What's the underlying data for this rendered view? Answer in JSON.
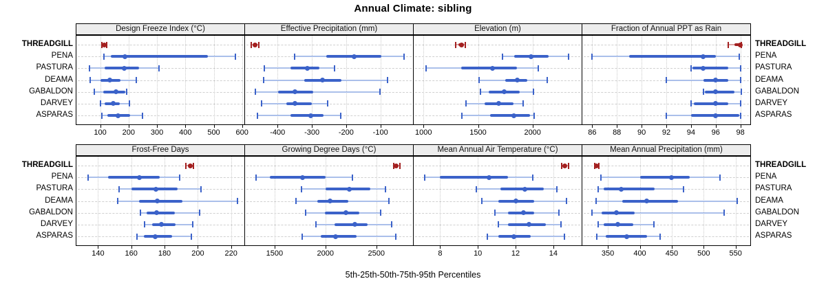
{
  "title": "Annual Climate: sibling",
  "footer": "5th-25th-50th-75th-95th Percentiles",
  "colors": {
    "series": "#3b62c9",
    "series_light": "#aabfea",
    "highlight": "#a32020",
    "highlight_light": "#d9a4a4",
    "grid": "#cfcfcf",
    "strip_bg": "#ededed",
    "panel_border": "#000000"
  },
  "chart_data": {
    "type": "dotplot",
    "subtype": "percentile-interval-plot (lattice-style, 2x4 panels)",
    "percentiles": [
      5,
      25,
      50,
      75,
      95
    ],
    "title": "Annual Climate: sibling",
    "xlabel": "5th-25th-50th-75th-95th Percentiles",
    "legend_position": "none",
    "grid": "horizontal dashed rows, vertical dotted at ticks",
    "categories": [
      "THREADGILL",
      "PENA",
      "PASTURA",
      "DEAMA",
      "GABALDON",
      "DARVEY",
      "ASPARAS"
    ],
    "highlight_category": "THREADGILL",
    "panels": [
      {
        "title": "Design Freeze Index (°C)",
        "grid_row": 0,
        "grid_col": 0,
        "xlim": [
          16,
          608
        ],
        "ticks": [
          100,
          200,
          300,
          400,
          500,
          600
        ],
        "values": [
          [
            105,
            110,
            114,
            119,
            123
          ],
          [
            112,
            137,
            186,
            480,
            577
          ],
          [
            62,
            116,
            184,
            236,
            308
          ],
          [
            64,
            100,
            134,
            172,
            226
          ],
          [
            78,
            110,
            156,
            188,
            192
          ],
          [
            102,
            116,
            146,
            170,
            202
          ],
          [
            106,
            124,
            162,
            204,
            248
          ]
        ]
      },
      {
        "title": "Effective Precipitation (mm)",
        "grid_row": 0,
        "grid_col": 1,
        "xlim": [
          -495,
          -5
        ],
        "ticks": [
          -400,
          -300,
          -200,
          -100
        ],
        "values": [
          [
            -478,
            -471,
            -465,
            -459,
            -454
          ],
          [
            -351,
            -258,
            -177,
            -97,
            -32
          ],
          [
            -439,
            -362,
            -314,
            -278,
            -235
          ],
          [
            -440,
            -323,
            -270,
            -214,
            -80
          ],
          [
            -464,
            -399,
            -350,
            -297,
            -101
          ],
          [
            -446,
            -375,
            -349,
            -300,
            -255
          ],
          [
            -458,
            -362,
            -303,
            -266,
            -216
          ]
        ]
      },
      {
        "title": "Elevation (m)",
        "grid_row": 0,
        "grid_col": 2,
        "xlim": [
          910,
          2450
        ],
        "ticks": [
          1000,
          1500,
          2000
        ],
        "values": [
          [
            1295,
            1320,
            1350,
            1370,
            1386
          ],
          [
            1722,
            1833,
            1986,
            2148,
            2331
          ],
          [
            1024,
            1346,
            1630,
            1854,
            2051
          ],
          [
            1508,
            1752,
            1858,
            1950,
            2132
          ],
          [
            1522,
            1600,
            1742,
            1884,
            2006
          ],
          [
            1390,
            1559,
            1691,
            1823,
            1915
          ],
          [
            1352,
            1610,
            1827,
            1976,
            2016
          ]
        ]
      },
      {
        "title": "Fraction of Annual PPT as Rain",
        "grid_row": 0,
        "grid_col": 3,
        "xlim": [
          85.2,
          98.8
        ],
        "ticks": [
          86,
          88,
          90,
          92,
          94,
          96,
          98
        ],
        "values": [
          [
            97.0,
            97.5,
            98.0,
            98.05,
            98.1
          ],
          [
            86.0,
            89.0,
            95.0,
            96.0,
            97.9
          ],
          [
            94.0,
            94.1,
            95.0,
            97.0,
            98.0
          ],
          [
            92.0,
            95.0,
            96.0,
            97.0,
            98.0
          ],
          [
            95.0,
            95.1,
            96.0,
            97.5,
            98.05
          ],
          [
            94.0,
            94.2,
            96.0,
            97.0,
            98.0
          ],
          [
            92.0,
            94.0,
            96.0,
            97.9,
            98.0
          ]
        ]
      },
      {
        "title": "Frost-Free Days",
        "grid_row": 1,
        "grid_col": 0,
        "xlim": [
          127,
          228
        ],
        "ticks": [
          140,
          160,
          180,
          200,
          220
        ],
        "values": [
          [
            193,
            194,
            195.5,
            196.5,
            197.5
          ],
          [
            134,
            146,
            165,
            177,
            189
          ],
          [
            152.8,
            160,
            174.8,
            188,
            202
          ],
          [
            152,
            164.8,
            175.6,
            190.8,
            224
          ],
          [
            165.5,
            169.4,
            175.4,
            186.2,
            201
          ],
          [
            168,
            172.4,
            177.9,
            186.6,
            196.8
          ],
          [
            163.4,
            167.6,
            174.2,
            184.6,
            195.9
          ]
        ]
      },
      {
        "title": "Growing Degree Days (°C)",
        "grid_row": 1,
        "grid_col": 1,
        "xlim": [
          1210,
          2860
        ],
        "ticks": [
          1500,
          2000,
          2500
        ],
        "values": [
          [
            2669,
            2680,
            2693,
            2710,
            2730
          ],
          [
            1320,
            1452,
            1775,
            2000,
            2262
          ],
          [
            1764,
            2000,
            2231,
            2444,
            2591
          ],
          [
            1709,
            1917,
            2048,
            2224,
            2624
          ],
          [
            1803,
            1993,
            2198,
            2334,
            2543
          ],
          [
            1907,
            2088,
            2290,
            2411,
            2652
          ],
          [
            1768,
            1951,
            2099,
            2308,
            2691
          ]
        ]
      },
      {
        "title": "Mean Annual Air Temperature (°C)",
        "grid_row": 1,
        "grid_col": 2,
        "xlim": [
          6.6,
          15.5
        ],
        "ticks": [
          8,
          10,
          12,
          14
        ],
        "values": [
          [
            14.45,
            14.5,
            14.6,
            14.7,
            14.8
          ],
          [
            7.2,
            8.0,
            10.6,
            11.6,
            12.9
          ],
          [
            9.9,
            11.2,
            12.5,
            13.5,
            14.2
          ],
          [
            10.2,
            11.1,
            12.0,
            13.0,
            14.7
          ],
          [
            10.9,
            11.6,
            12.4,
            13.0,
            14.3
          ],
          [
            11.1,
            11.6,
            12.7,
            13.6,
            14.4
          ],
          [
            10.5,
            11.1,
            11.9,
            12.8,
            14.6
          ]
        ]
      },
      {
        "title": "Mean Annual Precipitation (mm)",
        "grid_row": 1,
        "grid_col": 3,
        "xlim": [
          310,
          573
        ],
        "ticks": [
          350,
          400,
          450,
          500,
          550
        ],
        "values": [
          [
            329,
            330.5,
            332,
            334,
            335.5
          ],
          [
            339,
            401,
            450,
            478,
            526
          ],
          [
            335,
            343,
            371,
            423,
            468
          ],
          [
            331,
            372,
            411,
            460,
            553
          ],
          [
            325,
            340,
            363,
            392,
            532
          ],
          [
            335,
            343,
            365,
            390,
            422
          ],
          [
            333,
            347,
            379,
            411,
            432
          ]
        ]
      }
    ]
  }
}
